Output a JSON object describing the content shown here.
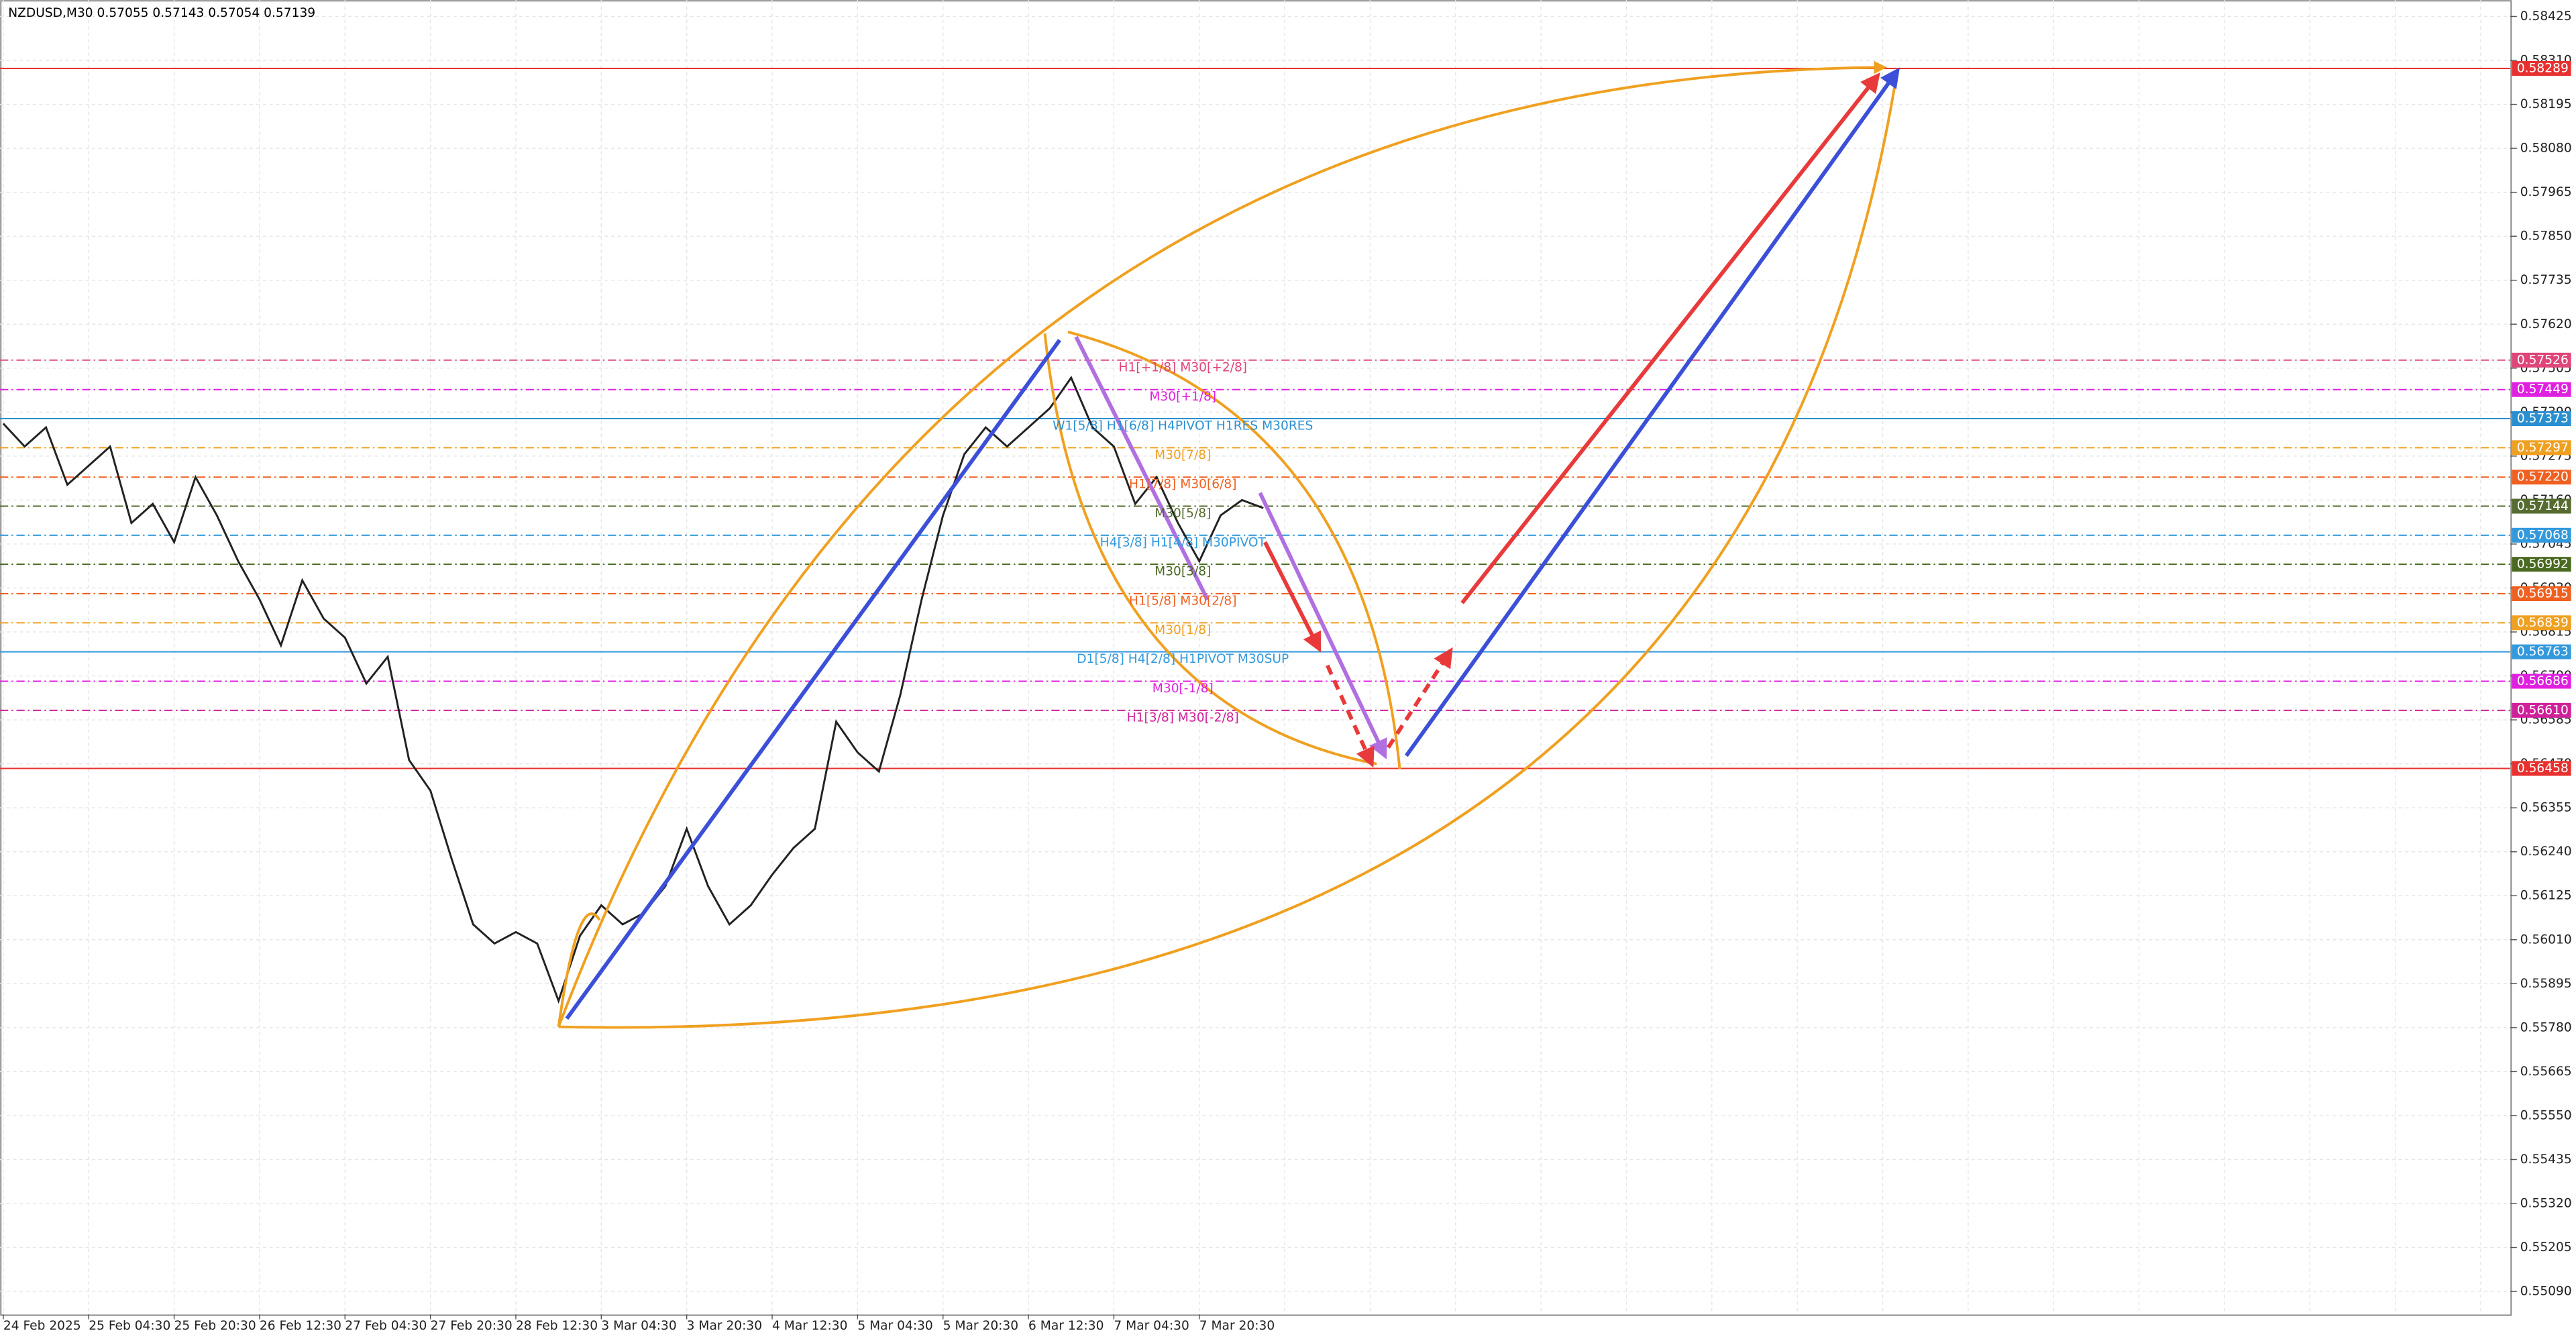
{
  "chart_data": {
    "type": "line",
    "title": "NZDUSD,M30  0.57055 0.57143 0.57054 0.57139",
    "color": "#222222",
    "categories": [
      "24 Feb 2025",
      null,
      null,
      null,
      "25 Feb 04:30",
      null,
      null,
      null,
      "25 Feb 20:30",
      null,
      null,
      null,
      "26 Feb 12:30",
      null,
      null,
      null,
      "27 Feb 04:30",
      null,
      null,
      null,
      "27 Feb 20:30",
      null,
      null,
      null,
      "28 Feb 12:30",
      null,
      null,
      null,
      "3 Mar 04:30",
      null,
      null,
      null,
      "3 Mar 20:30",
      null,
      null,
      null,
      "4 Mar 12:30",
      null,
      null,
      null,
      "5 Mar 04:30",
      null,
      null,
      null,
      "5 Mar 20:30",
      null,
      null,
      null,
      "6 Mar 12:30",
      null,
      null,
      null,
      "7 Mar 04:30",
      null,
      null,
      null,
      "7 Mar 20:30",
      null,
      null,
      null
    ],
    "values": [
      0.5736,
      0.573,
      0.5735,
      0.572,
      0.5725,
      0.573,
      0.571,
      0.5715,
      0.5705,
      0.5722,
      0.5712,
      0.57,
      0.569,
      0.5678,
      0.5695,
      0.5685,
      0.568,
      0.5668,
      0.5675,
      0.5648,
      0.564,
      0.5622,
      0.5605,
      0.56,
      0.5603,
      0.56,
      0.5585,
      0.5602,
      0.561,
      0.5605,
      0.5608,
      0.5615,
      0.563,
      0.5615,
      0.5605,
      0.561,
      0.5618,
      0.5625,
      0.563,
      0.5658,
      0.565,
      0.5645,
      0.5665,
      0.569,
      0.5712,
      0.5728,
      0.5735,
      0.573,
      0.5735,
      0.574,
      0.5748,
      0.5735,
      0.573,
      0.5715,
      0.5722,
      0.571,
      0.57,
      0.5712,
      0.5716,
      0.57139
    ],
    "ylim": [
      0.5503,
      0.58468
    ],
    "yticks": [
      0.58425,
      {
        "value": 0.5831,
        "label": "0.58310"
      },
      0.58195,
      {
        "value": 0.5808,
        "label": "0.58080"
      },
      0.57965,
      {
        "value": 0.5785,
        "label": "0.57850"
      },
      0.57735,
      {
        "value": 0.5762,
        "label": "0.57620"
      },
      0.57505,
      {
        "value": 0.5739,
        "label": "0.57390"
      },
      0.57275,
      {
        "value": 0.5716,
        "label": "0.57160"
      },
      0.57045,
      {
        "value": 0.5693,
        "label": "0.56930"
      },
      0.56815,
      {
        "value": 0.567,
        "label": "0.56700"
      },
      0.56585,
      {
        "value": 0.5647,
        "label": "0.56470"
      },
      0.56355,
      {
        "value": 0.5624,
        "label": "0.56240"
      },
      0.56125,
      {
        "value": 0.5601,
        "label": "0.56010"
      },
      0.55895,
      {
        "value": 0.5578,
        "label": "0.55780"
      },
      0.55665,
      {
        "value": 0.5555,
        "label": "0.55550"
      },
      0.55435,
      {
        "value": 0.5532,
        "label": "0.55320"
      },
      0.55205,
      {
        "value": 0.5509,
        "label": "0.55090"
      }
    ],
    "grid": true,
    "levels": [
      {
        "value": 0.58289,
        "label": "0.58289",
        "color": "#e8312f",
        "style": "solid"
      },
      {
        "value": 0.57526,
        "label": "0.57526",
        "color": "#e0457a",
        "style": "dashed",
        "text": "H1[+1/8] M30[+2/8]"
      },
      {
        "value": 0.57449,
        "label": "0.57449",
        "color": "#e020e0",
        "style": "dashed",
        "text": "M30[+1/8]"
      },
      {
        "value": 0.57373,
        "label": "0.57373",
        "color": "#2a8fd0",
        "style": "solid",
        "text": "W1[5/8] H1[6/8] H4PIVOT H1RES M30RES"
      },
      {
        "value": 0.57297,
        "label": "0.57297",
        "color": "#f0a020",
        "style": "dashed",
        "text": "M30[7/8]"
      },
      {
        "value": 0.5722,
        "label": "0.57220",
        "color": "#f06020",
        "style": "dashed",
        "text": "H1[7/8] M30[6/8]"
      },
      {
        "value": 0.57144,
        "label": "0.57144",
        "color": "#556b2f",
        "style": "dashed",
        "text": "M30[5/8]"
      },
      {
        "value": 0.57068,
        "label": "0.57068",
        "color": "#3399dd",
        "style": "dashed",
        "text": "H4[3/8] H1[4/8] M30PIVOT"
      },
      {
        "value": 0.56992,
        "label": "0.56992",
        "color": "#4a6a20",
        "style": "dashed",
        "text": "M30[3/8]"
      },
      {
        "value": 0.56915,
        "label": "0.56915",
        "color": "#f06020",
        "style": "dashed",
        "text": "H1[5/8] M30[2/8]"
      },
      {
        "value": 0.56839,
        "label": "0.56839",
        "color": "#f0a020",
        "style": "dashed",
        "text": "M30[1/8]"
      },
      {
        "value": 0.56763,
        "label": "0.56763",
        "color": "#3399dd",
        "style": "solid",
        "text": "D1[5/8] H4[2/8] H1PIVOT M30SUP"
      },
      {
        "value": 0.56686,
        "label": "0.56686",
        "color": "#e020e0",
        "style": "dashed",
        "text": "M30[-1/8]"
      },
      {
        "value": 0.5661,
        "label": "0.56610",
        "color": "#d0209a",
        "style": "dashed",
        "text": "H1[3/8] M30[-2/8]"
      },
      {
        "value": 0.56458,
        "label": "0.56458",
        "color": "#e8312f",
        "style": "solid"
      }
    ]
  }
}
